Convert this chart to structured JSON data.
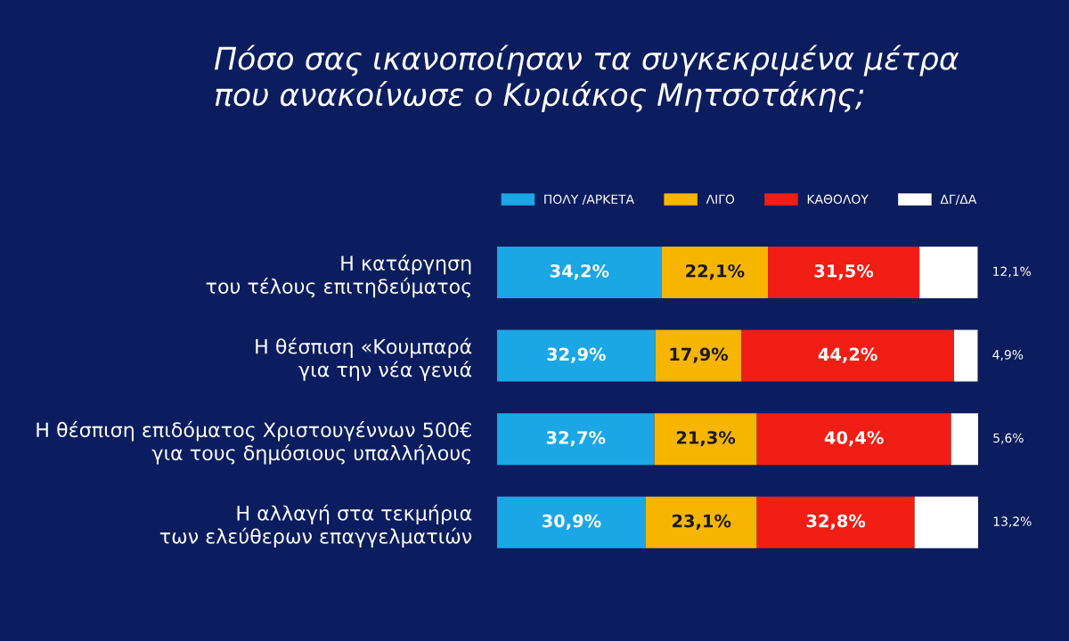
{
  "chart_data": {
    "type": "bar",
    "orientation": "horizontal",
    "stacked": true,
    "title": "Πόσο σας ικανοποίησαν τα συγκεκριμένα μέτρα\nπου ανακοίνωσε ο Κυριάκος Μητσοτάκης;",
    "categories": [
      "Η κατάργηση\nτου τέλους επιτηδεύματος",
      "Η θέσπιση «Κουμπαρά\nγια την νέα γενιά",
      "Η θέσπιση επιδόματος Χριστουγέννων 500€\nγια τους δημόσιους υπαλλήλους",
      "Η αλλαγή στα τεκμήρια\nτων ελεύθερων επαγγελματιών"
    ],
    "series": [
      {
        "name": "ΠΟΛΥ /ΑΡΚΕΤΑ",
        "color": "#1ba6e6",
        "values": [
          34.2,
          32.9,
          32.7,
          30.9
        ],
        "value_labels": [
          "34,2%",
          "32,9%",
          "32,7%",
          "30,9%"
        ]
      },
      {
        "name": "ΛΙΓΟ",
        "color": "#f7b500",
        "values": [
          22.1,
          17.9,
          21.3,
          23.1
        ],
        "value_labels": [
          "22,1%",
          "17,9%",
          "21,3%",
          "23,1%"
        ]
      },
      {
        "name": "ΚΑΘΟΛΟΥ",
        "color": "#f01e14",
        "values": [
          31.5,
          44.2,
          40.4,
          32.8
        ],
        "value_labels": [
          "31,5%",
          "44,2%",
          "40,4%",
          "32,8%"
        ]
      },
      {
        "name": "ΔΓ/ΔΑ",
        "color": "#ffffff",
        "values": [
          12.1,
          4.9,
          5.6,
          13.2
        ],
        "value_labels": [
          "12,1%",
          "4,9%",
          "5,6%",
          "13,2%"
        ]
      }
    ],
    "legend": "top right"
  }
}
